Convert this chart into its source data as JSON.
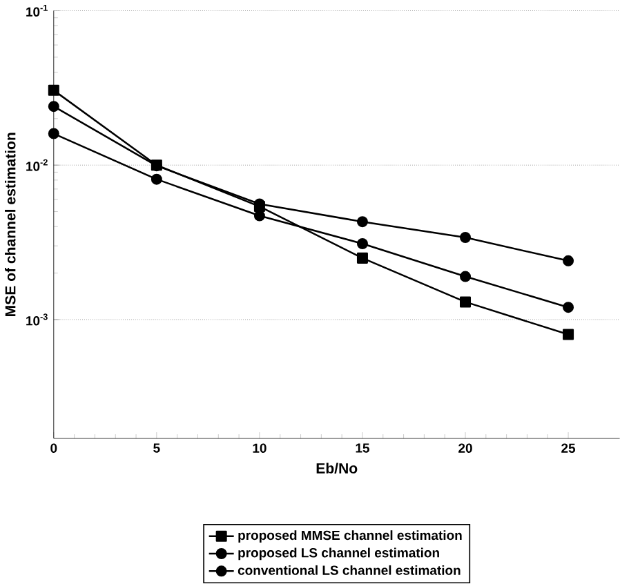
{
  "chart_data": {
    "type": "line",
    "xlabel": "Eb/No",
    "ylabel": "MSE of channel estimation",
    "x": [
      0,
      5,
      10,
      15,
      20,
      25
    ],
    "series": [
      {
        "name": "proposed MMSE channel estimation",
        "color": "#000000",
        "marker": "square",
        "values": [
          0.0305,
          0.01,
          0.0054,
          0.0025,
          0.0013,
          0.0008
        ]
      },
      {
        "name": "proposed LS channel estimation",
        "color": "#000000",
        "marker": "circle",
        "values": [
          0.016,
          0.0081,
          0.0047,
          0.0031,
          0.0019,
          0.0012
        ]
      },
      {
        "name": "conventional LS channel estimation",
        "color": "#000000",
        "marker": "circle",
        "values": [
          0.024,
          0.0099,
          0.0056,
          0.0043,
          0.0034,
          0.0024
        ]
      }
    ],
    "log": "y",
    "xlim": [
      0,
      27.5
    ],
    "ylim": [
      0.00017,
      0.1
    ],
    "xticks": [
      0,
      5,
      10,
      15,
      20,
      25
    ],
    "yticks": [
      {
        "value": 0.001,
        "label": "10$^{-3}$"
      },
      {
        "value": 0.01,
        "label": "10$^{-2}$"
      },
      {
        "value": 0.1,
        "label": "10$^{-1}$"
      }
    ],
    "grid": "y",
    "legend": "bottom",
    "line_style": "solid"
  }
}
